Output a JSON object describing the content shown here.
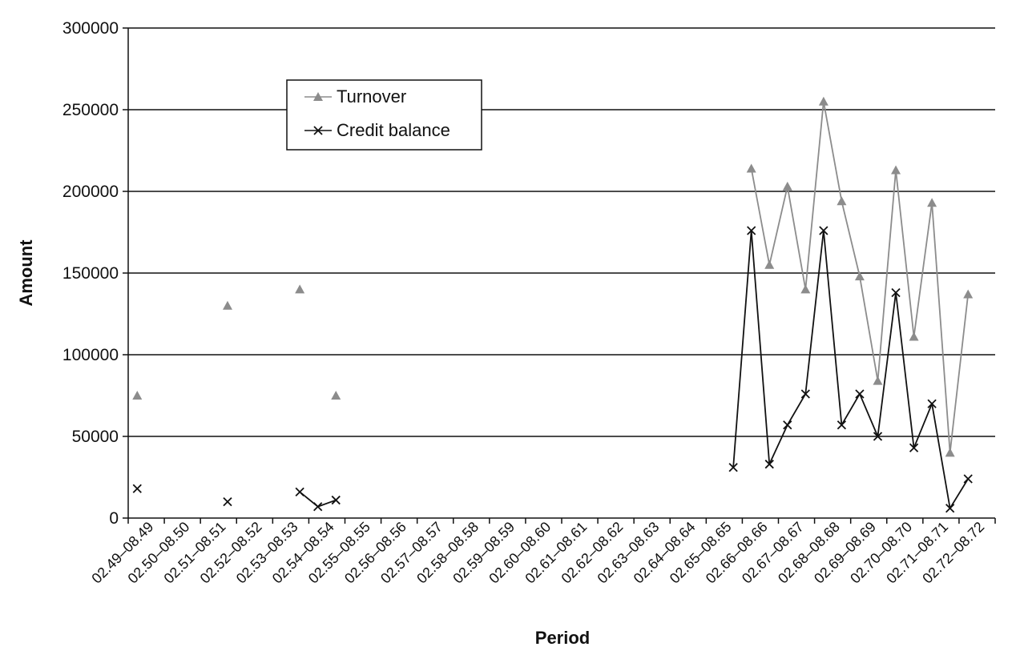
{
  "chart_data": {
    "type": "line",
    "xlabel": "Period",
    "ylabel": "Amount",
    "ylim": [
      0,
      300000
    ],
    "yticks": [
      0,
      50000,
      100000,
      150000,
      200000,
      250000,
      300000
    ],
    "ytick_labels": [
      "0",
      "50000",
      "100000",
      "150000",
      "200000",
      "250000",
      "300000"
    ],
    "grid": "horizontal",
    "legend_position": "top-left",
    "categories": [
      "02.49–08.49",
      "02.50–08.50",
      "02.51–08.51",
      "02.52–08.52",
      "02.53–08.53",
      "02.54–08.54",
      "02.55–08.55",
      "02.56–08.56",
      "02.57–08.57",
      "02.58–08.58",
      "02.59–08.59",
      "02.60–08.60",
      "02.61–08.61",
      "02.62–08.62",
      "02.63–08.63",
      "02.64–08.64",
      "02.65–08.65",
      "02.66–08.66",
      "02.67–08.67",
      "02.68–08.68",
      "02.69–08.69",
      "02.70–08.70",
      "02.71–08.71",
      "02.72–08.72"
    ],
    "series": [
      {
        "name": "Turnover",
        "marker": "triangle",
        "color": "#8c8c8c",
        "x": [
          0,
          5,
          9,
          11,
          34,
          35,
          36,
          37,
          38,
          39,
          40,
          41,
          42,
          43,
          44,
          45,
          46
        ],
        "values": [
          75000,
          130000,
          140000,
          75000,
          214000,
          155000,
          203000,
          140000,
          255000,
          194000,
          148000,
          84000,
          213000,
          111000,
          193000,
          40000,
          137000
        ]
      },
      {
        "name": "Credit balance",
        "marker": "x",
        "color": "#111111",
        "x": [
          0,
          5,
          9,
          10,
          11,
          33,
          34,
          35,
          36,
          37,
          38,
          39,
          40,
          41,
          42,
          43,
          44,
          45,
          46
        ],
        "values": [
          18000,
          10000,
          16000,
          7000,
          11000,
          31000,
          176000,
          33000,
          57000,
          76000,
          176000,
          57000,
          76000,
          50000,
          138000,
          43000,
          70000,
          6000,
          24000
        ]
      }
    ]
  }
}
